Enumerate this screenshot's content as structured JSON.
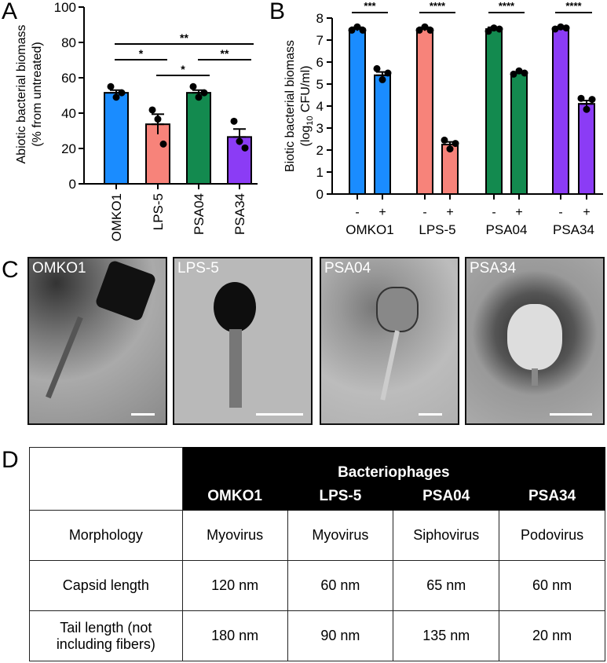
{
  "panels": {
    "a": "A",
    "b": "B",
    "c": "C",
    "d": "D"
  },
  "colors": {
    "OMKO1": "#1a8cff",
    "LPS-5": "#f7837a",
    "PSA04": "#138a4f",
    "PSA34": "#8b3cf5"
  },
  "chart_data": [
    {
      "type": "bar",
      "title": "",
      "ylabel_line1": "Abiotic bacterial biomass",
      "ylabel_line2": "(% from untreated)",
      "categories": [
        "OMKO1",
        "LPS-5",
        "PSA04",
        "PSA34"
      ],
      "values": [
        51.5,
        33.7,
        51.5,
        26.5
      ],
      "sem": [
        1.5,
        5.7,
        1.5,
        4.5
      ],
      "points": [
        [
          55,
          49,
          51.5
        ],
        [
          41.8,
          36.6,
          22.5
        ],
        [
          55,
          49,
          51.5
        ],
        [
          35.4,
          24,
          20.3
        ]
      ],
      "ylim": [
        0,
        100
      ],
      "yticks": [
        0,
        20,
        40,
        60,
        80,
        100
      ],
      "significance": [
        {
          "from": "OMKO1",
          "to": "PSA34",
          "label": "**"
        },
        {
          "from": "OMKO1",
          "to": "LPS-5",
          "label": "*"
        },
        {
          "from": "PSA04",
          "to": "PSA34",
          "label": "**"
        },
        {
          "from": "LPS-5",
          "to": "PSA04",
          "label": "*"
        }
      ]
    },
    {
      "type": "bar",
      "ylabel_line1": "Biotic bacterial biomass",
      "ylabel_line2_pre": "(log",
      "ylabel_line2_sub": "10",
      "ylabel_line2_post": " CFU/ml)",
      "groups": [
        "OMKO1",
        "LPS-5",
        "PSA04",
        "PSA34"
      ],
      "conditions": [
        "-",
        "+"
      ],
      "values": [
        [
          7.5,
          5.4
        ],
        [
          7.5,
          2.25
        ],
        [
          7.5,
          5.5
        ],
        [
          7.55,
          4.1
        ]
      ],
      "sem": [
        [
          0.08,
          0.15
        ],
        [
          0.08,
          0.12
        ],
        [
          0.08,
          0.05
        ],
        [
          0.05,
          0.15
        ]
      ],
      "points": [
        [
          [
            7.45,
            7.6,
            7.45
          ],
          [
            5.7,
            5.2,
            5.5
          ]
        ],
        [
          [
            7.45,
            7.6,
            7.45
          ],
          [
            2.45,
            2.05,
            2.3
          ]
        ],
        [
          [
            7.4,
            7.55,
            7.5
          ],
          [
            5.45,
            5.6,
            5.5
          ]
        ],
        [
          [
            7.5,
            7.6,
            7.55
          ],
          [
            4.35,
            3.85,
            4.3
          ]
        ]
      ],
      "ylim": [
        0,
        8
      ],
      "yticks": [
        0,
        1,
        2,
        3,
        4,
        5,
        6,
        7,
        8
      ],
      "significance": [
        "***",
        "****",
        "****",
        "****"
      ]
    }
  ],
  "micrographs": [
    {
      "label": "OMKO1"
    },
    {
      "label": "LPS-5"
    },
    {
      "label": "PSA04"
    },
    {
      "label": "PSA34"
    }
  ],
  "table": {
    "group_header": "Bacteriophages",
    "columns": [
      "OMKO1",
      "LPS-5",
      "PSA04",
      "PSA34"
    ],
    "rows": [
      {
        "label": "Morphology",
        "values": [
          "Myovirus",
          "Myovirus",
          "Siphovirus",
          "Podovirus"
        ]
      },
      {
        "label": "Capsid length",
        "values": [
          "120 nm",
          "60 nm",
          "65 nm",
          "60 nm"
        ]
      },
      {
        "label_line1": "Tail length (not",
        "label_line2": "including fibers)",
        "values": [
          "180 nm",
          "90 nm",
          "135 nm",
          "20 nm"
        ]
      }
    ]
  }
}
